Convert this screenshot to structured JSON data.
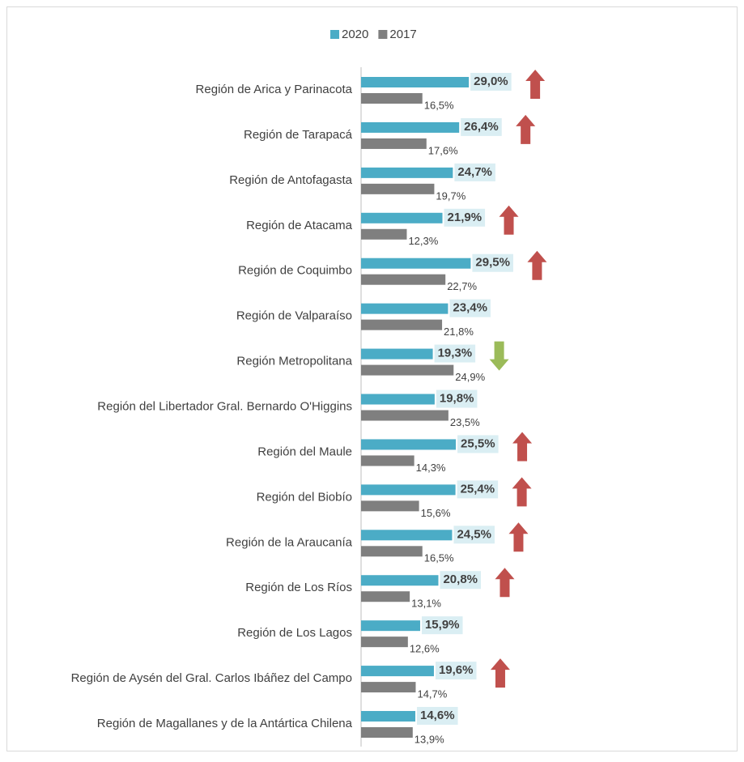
{
  "chart_data": {
    "type": "bar",
    "orientation": "horizontal",
    "categories": [
      "Región de Arica y Parinacota",
      "Región de Tarapacá",
      "Región de Antofagasta",
      "Región de Atacama",
      "Región de Coquimbo",
      "Región de Valparaíso",
      "Región Metropolitana",
      "Región del Libertador Gral. Bernardo O'Higgins",
      "Región del Maule",
      "Región del Biobío",
      "Región de la Araucanía",
      "Región de Los Ríos",
      "Región de Los Lagos",
      "Región de Aysén del Gral. Carlos Ibáñez del Campo",
      "Región de Magallanes y de la Antártica Chilena"
    ],
    "series": [
      {
        "name": "2020",
        "color": "#4bacc6",
        "values": [
          29.0,
          26.4,
          24.7,
          21.9,
          29.5,
          23.4,
          19.3,
          19.8,
          25.5,
          25.4,
          24.5,
          20.8,
          15.9,
          19.6,
          14.6
        ],
        "value_labels": [
          "29,0%",
          "26,4%",
          "24,7%",
          "21,9%",
          "29,5%",
          "23,4%",
          "19,3%",
          "19,8%",
          "25,5%",
          "25,4%",
          "24,5%",
          "20,8%",
          "15,9%",
          "19,6%",
          "14,6%"
        ]
      },
      {
        "name": "2017",
        "color": "#7f7f7f",
        "values": [
          16.5,
          17.6,
          19.7,
          12.3,
          22.7,
          21.8,
          24.9,
          23.5,
          14.3,
          15.6,
          16.5,
          13.1,
          12.6,
          14.7,
          13.9
        ],
        "value_labels": [
          "16,5%",
          "17,6%",
          "19,7%",
          "12,3%",
          "22,7%",
          "21,8%",
          "24,9%",
          "23,5%",
          "14,3%",
          "15,6%",
          "16,5%",
          "13,1%",
          "12,6%",
          "14,7%",
          "13,9%"
        ]
      }
    ],
    "trend": [
      "up",
      "up",
      null,
      "up",
      "up",
      null,
      "down",
      null,
      "up",
      "up",
      "up",
      "up",
      null,
      "up",
      null
    ],
    "trend_colors": {
      "up": "#c0504d",
      "down": "#9bbb59"
    },
    "legend": "top"
  }
}
